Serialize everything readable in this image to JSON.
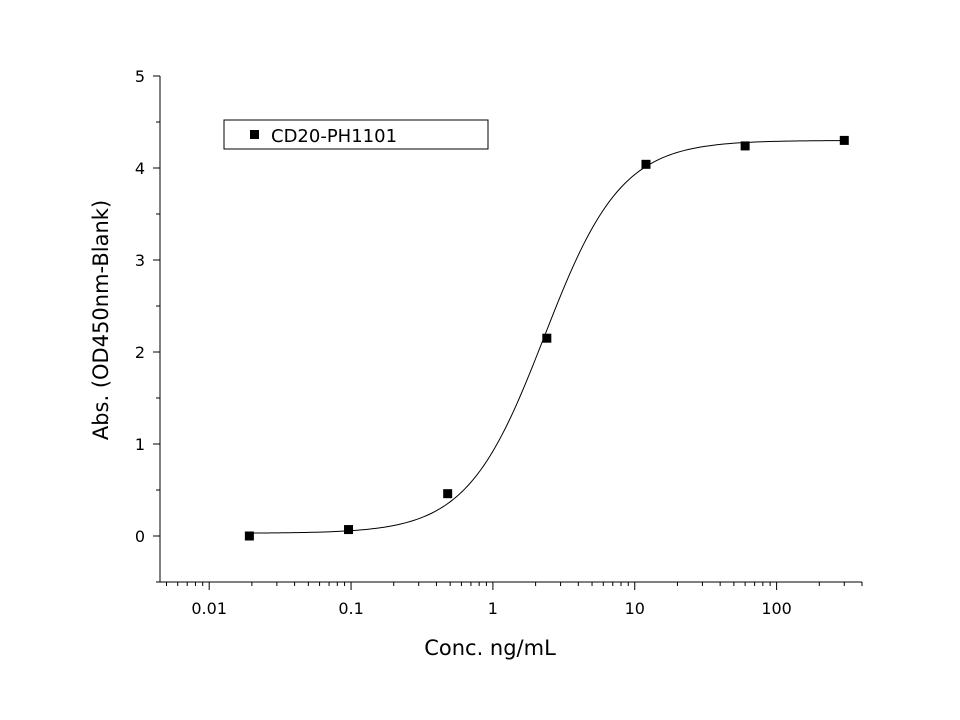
{
  "chart_data": {
    "type": "scatter",
    "xlabel": "Conc. ng/mL",
    "ylabel": "Abs. (OD450nm-Blank)",
    "x_scale": "log",
    "xlim": [
      0.0045,
      400
    ],
    "ylim": [
      -0.5,
      5
    ],
    "x_ticks": [
      {
        "value": 0.01,
        "label": "0.01"
      },
      {
        "value": 0.1,
        "label": "0.1"
      },
      {
        "value": 1,
        "label": "1"
      },
      {
        "value": 10,
        "label": "10"
      },
      {
        "value": 100,
        "label": "100"
      }
    ],
    "y_ticks": [
      {
        "value": 0,
        "label": "0"
      },
      {
        "value": 1,
        "label": "1"
      },
      {
        "value": 2,
        "label": "2"
      },
      {
        "value": 3,
        "label": "3"
      },
      {
        "value": 4,
        "label": "4"
      },
      {
        "value": 5,
        "label": "5"
      }
    ],
    "grid": false,
    "legend_position": "top-left",
    "series": [
      {
        "name": "CD20-PH1101",
        "marker": "square",
        "color": "#000000",
        "points": [
          {
            "x": 0.0192,
            "y": 0.0
          },
          {
            "x": 0.096,
            "y": 0.07
          },
          {
            "x": 0.48,
            "y": 0.46
          },
          {
            "x": 2.4,
            "y": 2.15
          },
          {
            "x": 12,
            "y": 4.04
          },
          {
            "x": 60,
            "y": 4.24
          },
          {
            "x": 300,
            "y": 4.3
          }
        ]
      }
    ],
    "fit_curve": {
      "type": "4PL",
      "bottom": 0.03,
      "top": 4.3,
      "ec50": 2.3,
      "hill": 1.6,
      "x_range": [
        0.0192,
        300
      ],
      "color": "#000000"
    }
  }
}
